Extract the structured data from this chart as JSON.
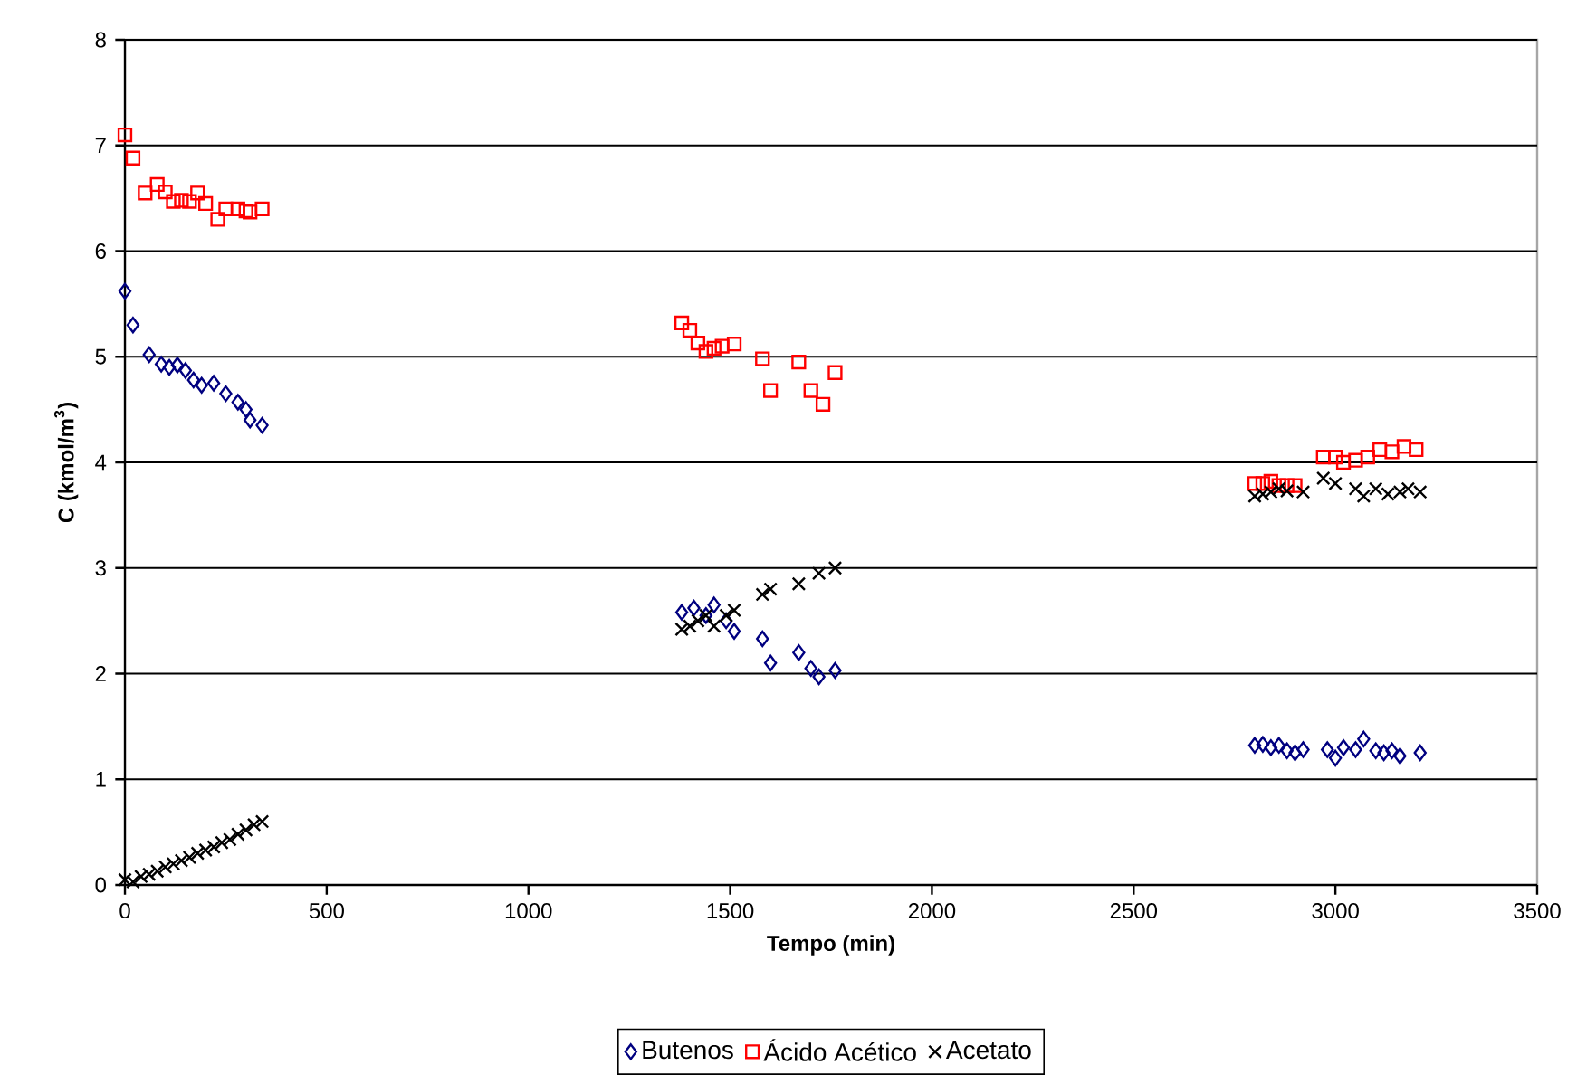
{
  "chart_data": {
    "type": "scatter",
    "xlabel": "Tempo (min)",
    "ylabel": "C (kmol/m$^{3}$)",
    "xlim": [
      0,
      3500
    ],
    "ylim": [
      0,
      8
    ],
    "xticks": [
      0,
      500,
      1000,
      1500,
      2000,
      2500,
      3000,
      3500
    ],
    "yticks": [
      0,
      1,
      2,
      3,
      4,
      5,
      6,
      7,
      8
    ],
    "grid": "y",
    "legend": "bottom",
    "series": [
      {
        "name": "Butenos",
        "color": "#000080",
        "marker": "diamond",
        "x": [
          0,
          20,
          60,
          90,
          110,
          130,
          150,
          170,
          190,
          220,
          250,
          280,
          300,
          310,
          340,
          1380,
          1410,
          1440,
          1460,
          1490,
          1510,
          1580,
          1600,
          1670,
          1700,
          1720,
          1760,
          2800,
          2820,
          2840,
          2860,
          2880,
          2900,
          2920,
          2980,
          3000,
          3020,
          3050,
          3070,
          3100,
          3120,
          3140,
          3160,
          3210
        ],
        "values": [
          5.62,
          5.3,
          5.02,
          4.93,
          4.9,
          4.92,
          4.87,
          4.78,
          4.73,
          4.75,
          4.65,
          4.57,
          4.5,
          4.4,
          4.35,
          2.58,
          2.62,
          2.55,
          2.65,
          2.5,
          2.4,
          2.33,
          2.1,
          2.2,
          2.05,
          1.97,
          2.03,
          1.32,
          1.33,
          1.3,
          1.32,
          1.27,
          1.25,
          1.28,
          1.28,
          1.2,
          1.3,
          1.28,
          1.38,
          1.27,
          1.25,
          1.27,
          1.22,
          1.25
        ]
      },
      {
        "name": "Ácido Acético",
        "color": "#ff0000",
        "marker": "square",
        "x": [
          0,
          20,
          50,
          80,
          100,
          120,
          140,
          160,
          180,
          200,
          230,
          250,
          280,
          300,
          310,
          340,
          1380,
          1400,
          1420,
          1440,
          1460,
          1480,
          1510,
          1580,
          1600,
          1670,
          1700,
          1730,
          1760,
          2800,
          2820,
          2840,
          2860,
          2880,
          2900,
          2970,
          3000,
          3020,
          3050,
          3080,
          3110,
          3140,
          3170,
          3200
        ],
        "values": [
          7.1,
          6.88,
          6.55,
          6.63,
          6.56,
          6.47,
          6.48,
          6.47,
          6.55,
          6.45,
          6.3,
          6.4,
          6.4,
          6.38,
          6.37,
          6.4,
          5.32,
          5.25,
          5.13,
          5.05,
          5.08,
          5.1,
          5.12,
          4.98,
          4.68,
          4.95,
          4.68,
          4.55,
          4.85,
          3.8,
          3.8,
          3.82,
          3.78,
          3.78,
          3.78,
          4.05,
          4.05,
          4.0,
          4.02,
          4.05,
          4.12,
          4.1,
          4.15,
          4.12
        ]
      },
      {
        "name": "Acetato",
        "color": "#000000",
        "marker": "cross",
        "x": [
          0,
          20,
          40,
          60,
          80,
          100,
          120,
          140,
          160,
          180,
          200,
          220,
          240,
          260,
          280,
          300,
          320,
          340,
          1380,
          1400,
          1420,
          1440,
          1460,
          1490,
          1510,
          1580,
          1600,
          1670,
          1720,
          1760,
          2800,
          2820,
          2840,
          2860,
          2880,
          2920,
          2970,
          3000,
          3050,
          3070,
          3100,
          3130,
          3160,
          3180,
          3210
        ],
        "values": [
          0.05,
          0.03,
          0.08,
          0.1,
          0.13,
          0.17,
          0.2,
          0.23,
          0.26,
          0.3,
          0.33,
          0.36,
          0.4,
          0.43,
          0.48,
          0.52,
          0.57,
          0.6,
          2.42,
          2.45,
          2.5,
          2.55,
          2.45,
          2.55,
          2.6,
          2.75,
          2.8,
          2.85,
          2.95,
          3.0,
          3.68,
          3.7,
          3.72,
          3.75,
          3.73,
          3.72,
          3.85,
          3.8,
          3.75,
          3.68,
          3.75,
          3.7,
          3.72,
          3.75,
          3.72
        ]
      }
    ]
  }
}
